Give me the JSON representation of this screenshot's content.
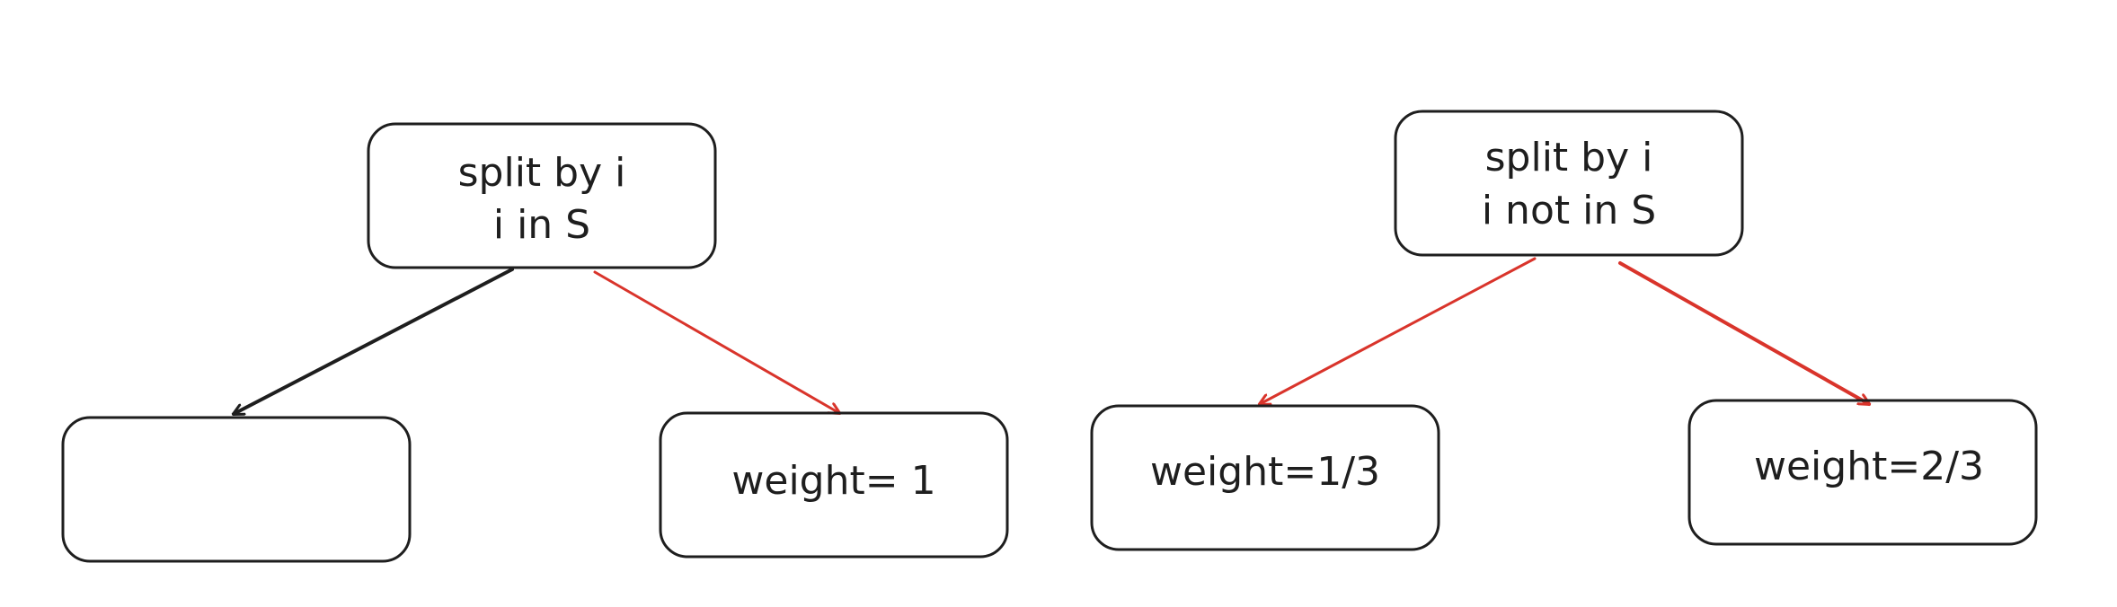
{
  "diagram": {
    "left": {
      "root": {
        "line1": "split by i",
        "line2": "i in S"
      },
      "left_child": {
        "label": ""
      },
      "right_child": {
        "label": "weight= 1"
      }
    },
    "right": {
      "root": {
        "line1": "split by i",
        "line2": "i not in S"
      },
      "left_child": {
        "label": "weight=1/3"
      },
      "right_child": {
        "label": "weight=2/3"
      }
    }
  },
  "colors": {
    "stroke": "#1e1e1e",
    "highlight_edge": "#d9342b",
    "background": "#ffffff"
  }
}
